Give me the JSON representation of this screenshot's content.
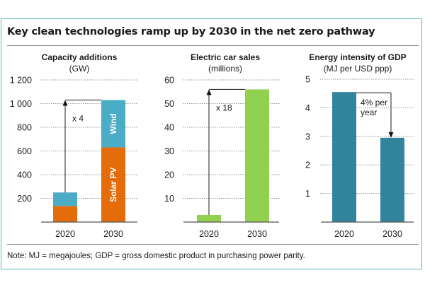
{
  "title": "Key clean technologies ramp up by 2030 in the net zero pathway",
  "note": "Note: MJ = megajoules; GDP = gross domestic product in purchasing power parity.",
  "colors": {
    "frame": "#5fb4c2",
    "solar": "#e46c0a",
    "wind": "#4bacc6",
    "ev": "#92d050",
    "energy": "#31849b"
  },
  "chart_data": [
    {
      "type": "bar",
      "stacked": true,
      "title": "Capacity additions",
      "unit": "(GW)",
      "categories": [
        "2020",
        "2030"
      ],
      "series": [
        {
          "name": "Solar PV",
          "color": "#e46c0a",
          "values": [
            135,
            630
          ]
        },
        {
          "name": "Wind",
          "color": "#4bacc6",
          "values": [
            115,
            400
          ]
        }
      ],
      "ylim": [
        0,
        1200
      ],
      "yticks": [
        200,
        400,
        600,
        800,
        1000,
        1200
      ],
      "ytick_labels": [
        "200",
        "400",
        "600",
        "800",
        "1 000",
        "1 200"
      ],
      "grid": true,
      "annotation": "x 4"
    },
    {
      "type": "bar",
      "title": "Electric car sales",
      "unit": "(millions)",
      "categories": [
        "2020",
        "2030"
      ],
      "series": [
        {
          "name": "Electric car sales",
          "color": "#92d050",
          "values": [
            3,
            56
          ]
        }
      ],
      "ylim": [
        0,
        60
      ],
      "yticks": [
        10,
        20,
        30,
        40,
        50,
        60
      ],
      "ytick_labels": [
        "10",
        "20",
        "30",
        "40",
        "50",
        "60"
      ],
      "grid": true,
      "annotation": "x 18"
    },
    {
      "type": "bar",
      "title": "Energy intensity of GDP",
      "unit": "(MJ per USD ppp)",
      "categories": [
        "2020",
        "2030"
      ],
      "series": [
        {
          "name": "Energy intensity",
          "color": "#31849b",
          "values": [
            4.55,
            2.95
          ]
        }
      ],
      "ylim": [
        0,
        5
      ],
      "yticks": [
        1,
        2,
        3,
        4,
        5
      ],
      "ytick_labels": [
        "1",
        "2",
        "3",
        "4",
        "5"
      ],
      "grid": true,
      "annotation_lines": [
        "4% per",
        "year"
      ]
    }
  ]
}
